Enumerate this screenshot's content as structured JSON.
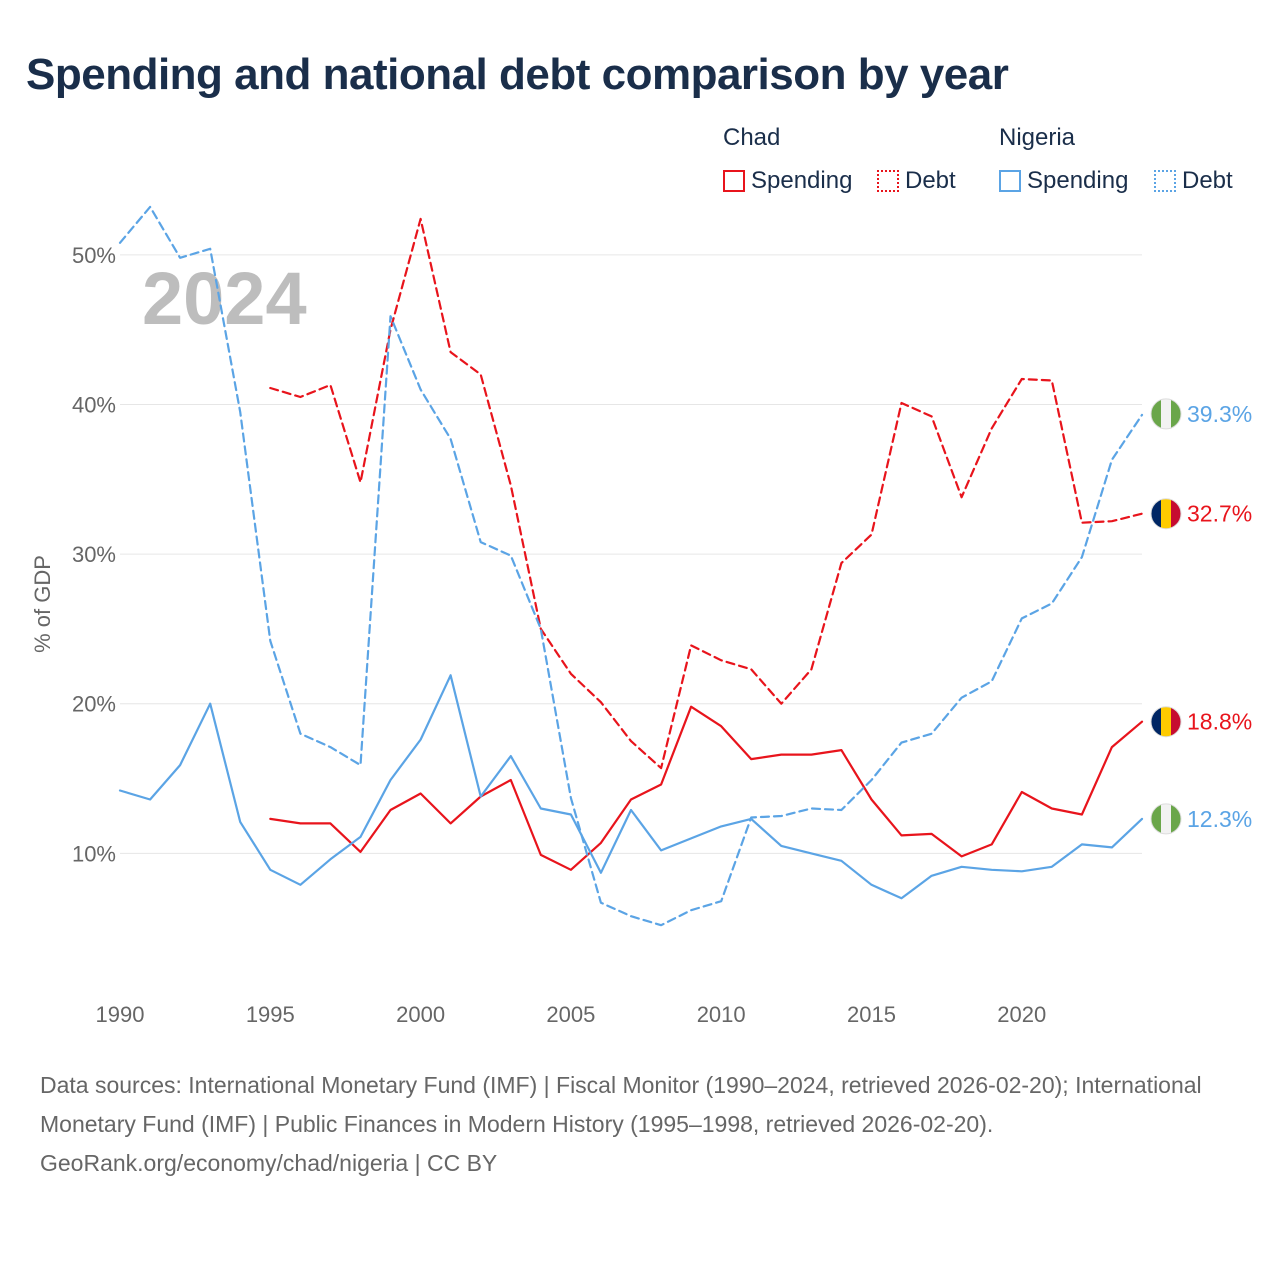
{
  "title": "Spending and national debt comparison by year",
  "legend": {
    "groups": [
      {
        "name": "Chad",
        "items": [
          {
            "label": "Spending",
            "style": "solid",
            "color": "#e8141c"
          },
          {
            "label": "Debt",
            "style": "dotted",
            "color": "#e8141c"
          }
        ]
      },
      {
        "name": "Nigeria",
        "items": [
          {
            "label": "Spending",
            "style": "solid",
            "color": "#5ba4e5"
          },
          {
            "label": "Debt",
            "style": "dotted",
            "color": "#5ba4e5"
          }
        ]
      }
    ]
  },
  "year_watermark": "2024",
  "chart_data": {
    "type": "line",
    "title": "Spending and national debt comparison by year",
    "xlabel": "",
    "ylabel": "% of GDP",
    "xlim": [
      1990,
      2024
    ],
    "ylim": [
      0,
      55
    ],
    "x_ticks": [
      {
        "value": 1990,
        "label": "1990"
      },
      {
        "value": 1995,
        "label": "1995"
      },
      {
        "value": 2000,
        "label": "2000"
      },
      {
        "value": 2005,
        "label": "2005"
      },
      {
        "value": 2010,
        "label": "2010"
      },
      {
        "value": 2015,
        "label": "2015"
      },
      {
        "value": 2020,
        "label": "2020"
      }
    ],
    "y_ticks": [
      {
        "value": 10,
        "label": "10%"
      },
      {
        "value": 20,
        "label": "20%"
      },
      {
        "value": 30,
        "label": "30%"
      },
      {
        "value": 40,
        "label": "40%"
      },
      {
        "value": 50,
        "label": "50%"
      }
    ],
    "grid": true,
    "series": [
      {
        "name": "Chad Spending",
        "country": "Chad",
        "metric": "Spending",
        "color": "#e8141c",
        "dash": "solid",
        "x": [
          1995,
          1996,
          1997,
          1998,
          1999,
          2000,
          2001,
          2002,
          2003,
          2004,
          2005,
          2006,
          2007,
          2008,
          2009,
          2010,
          2011,
          2012,
          2013,
          2014,
          2015,
          2016,
          2017,
          2018,
          2019,
          2020,
          2021,
          2022,
          2023,
          2024
        ],
        "values": [
          12.3,
          12.0,
          12.0,
          10.1,
          12.9,
          14.0,
          12.0,
          13.8,
          14.9,
          9.9,
          8.9,
          10.7,
          13.6,
          14.6,
          19.8,
          18.5,
          16.3,
          16.6,
          16.6,
          16.9,
          13.6,
          11.2,
          11.3,
          9.8,
          10.6,
          14.1,
          13.0,
          12.6,
          17.1,
          18.8
        ],
        "end_label": "18.8%"
      },
      {
        "name": "Chad Debt",
        "country": "Chad",
        "metric": "Debt",
        "color": "#e8141c",
        "dash": "dashed",
        "x": [
          1995,
          1996,
          1997,
          1998,
          1999,
          2000,
          2001,
          2002,
          2003,
          2004,
          2005,
          2006,
          2007,
          2008,
          2009,
          2010,
          2011,
          2012,
          2013,
          2014,
          2015,
          2016,
          2017,
          2018,
          2019,
          2020,
          2021,
          2022,
          2023,
          2024
        ],
        "values": [
          41.1,
          40.5,
          41.3,
          34.8,
          45.0,
          52.4,
          43.5,
          42.0,
          34.6,
          25.0,
          22.0,
          20.1,
          17.5,
          15.7,
          23.9,
          22.9,
          22.3,
          20.0,
          22.3,
          29.4,
          31.3,
          40.1,
          39.2,
          33.8,
          38.4,
          41.7,
          41.6,
          32.1,
          32.2,
          32.7
        ],
        "end_label": "32.7%"
      },
      {
        "name": "Nigeria Spending",
        "country": "Nigeria",
        "metric": "Spending",
        "color": "#5ba4e5",
        "dash": "solid",
        "x": [
          1990,
          1991,
          1992,
          1993,
          1994,
          1995,
          1996,
          1997,
          1998,
          1999,
          2000,
          2001,
          2002,
          2003,
          2004,
          2005,
          2006,
          2007,
          2008,
          2009,
          2010,
          2011,
          2012,
          2013,
          2014,
          2015,
          2016,
          2017,
          2018,
          2019,
          2020,
          2021,
          2022,
          2023,
          2024
        ],
        "values": [
          14.2,
          13.6,
          15.9,
          20.0,
          12.1,
          8.9,
          7.9,
          9.6,
          11.1,
          14.9,
          17.6,
          21.9,
          13.8,
          16.5,
          13.0,
          12.6,
          8.7,
          12.9,
          10.2,
          11.0,
          11.8,
          12.3,
          10.5,
          10.0,
          9.5,
          7.9,
          7.0,
          8.5,
          9.1,
          8.9,
          8.8,
          9.1,
          10.6,
          10.4,
          12.3
        ],
        "end_label": "12.3%"
      },
      {
        "name": "Nigeria Debt",
        "country": "Nigeria",
        "metric": "Debt",
        "color": "#5ba4e5",
        "dash": "dashed",
        "x": [
          1990,
          1991,
          1992,
          1993,
          1994,
          1995,
          1996,
          1997,
          1998,
          1999,
          2000,
          2001,
          2002,
          2003,
          2004,
          2005,
          2006,
          2007,
          2008,
          2009,
          2010,
          2011,
          2012,
          2013,
          2014,
          2015,
          2016,
          2017,
          2018,
          2019,
          2020,
          2021,
          2022,
          2023,
          2024
        ],
        "values": [
          50.8,
          53.2,
          49.8,
          50.4,
          39.5,
          24.2,
          18.0,
          17.1,
          15.9,
          45.9,
          41.0,
          37.7,
          30.8,
          29.9,
          25.0,
          13.7,
          6.7,
          5.8,
          5.2,
          6.2,
          6.8,
          12.4,
          12.5,
          13.0,
          12.9,
          14.9,
          17.4,
          18.0,
          20.4,
          21.5,
          25.7,
          26.7,
          29.8,
          36.3,
          39.3
        ],
        "end_label": "39.3%"
      }
    ],
    "end_labels_order": [
      {
        "series": "Nigeria Debt",
        "label": "39.3%",
        "color": "#5ba4e5",
        "flag": "nigeria-flag-icon"
      },
      {
        "series": "Chad Debt",
        "label": "32.7%",
        "color": "#e8141c",
        "flag": "chad-flag-icon"
      },
      {
        "series": "Chad Spending",
        "label": "18.8%",
        "color": "#e8141c",
        "flag": "chad-flag-icon"
      },
      {
        "series": "Nigeria Spending",
        "label": "12.3%",
        "color": "#5ba4e5",
        "flag": "nigeria-flag-icon"
      }
    ]
  },
  "footer": {
    "sources": "Data sources: International Monetary Fund (IMF) | Fiscal Monitor (1990–2024, retrieved 2026-02-20); International Monetary Fund (IMF) | Public Finances in Modern History (1995–1998, retrieved 2026-02-20).",
    "credit": "GeoRank.org/economy/chad/nigeria | CC BY"
  }
}
